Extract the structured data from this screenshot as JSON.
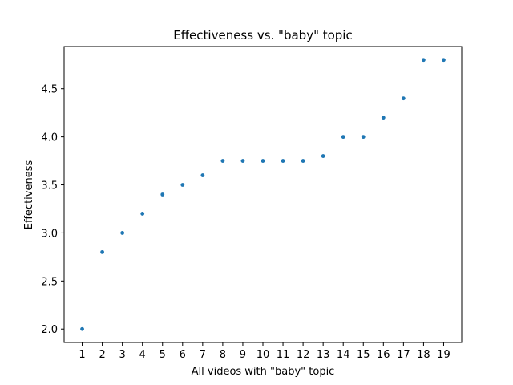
{
  "chart_data": {
    "type": "scatter",
    "title": "Effectiveness vs. \"baby\" topic",
    "xlabel": "All videos with \"baby\" topic",
    "ylabel": "Effectiveness",
    "x": [
      1,
      2,
      3,
      4,
      5,
      6,
      7,
      8,
      9,
      10,
      11,
      12,
      13,
      14,
      15,
      16,
      17,
      18,
      19
    ],
    "y": [
      2.0,
      2.8,
      3.0,
      3.2,
      3.4,
      3.5,
      3.6,
      3.75,
      3.75,
      3.75,
      3.75,
      3.75,
      3.8,
      4.0,
      4.0,
      4.2,
      4.4,
      4.8,
      4.8
    ],
    "xticks": [
      1,
      2,
      3,
      4,
      5,
      6,
      7,
      8,
      9,
      10,
      11,
      12,
      13,
      14,
      15,
      16,
      17,
      18,
      19
    ],
    "yticks": [
      2.0,
      2.5,
      3.0,
      3.5,
      4.0,
      4.5
    ],
    "ytick_labels": [
      "2.0",
      "2.5",
      "3.0",
      "3.5",
      "4.0",
      "4.5"
    ],
    "xlim": [
      0.1,
      19.9
    ],
    "ylim": [
      1.86,
      4.94
    ],
    "grid": false,
    "color": "#1f77b4"
  }
}
